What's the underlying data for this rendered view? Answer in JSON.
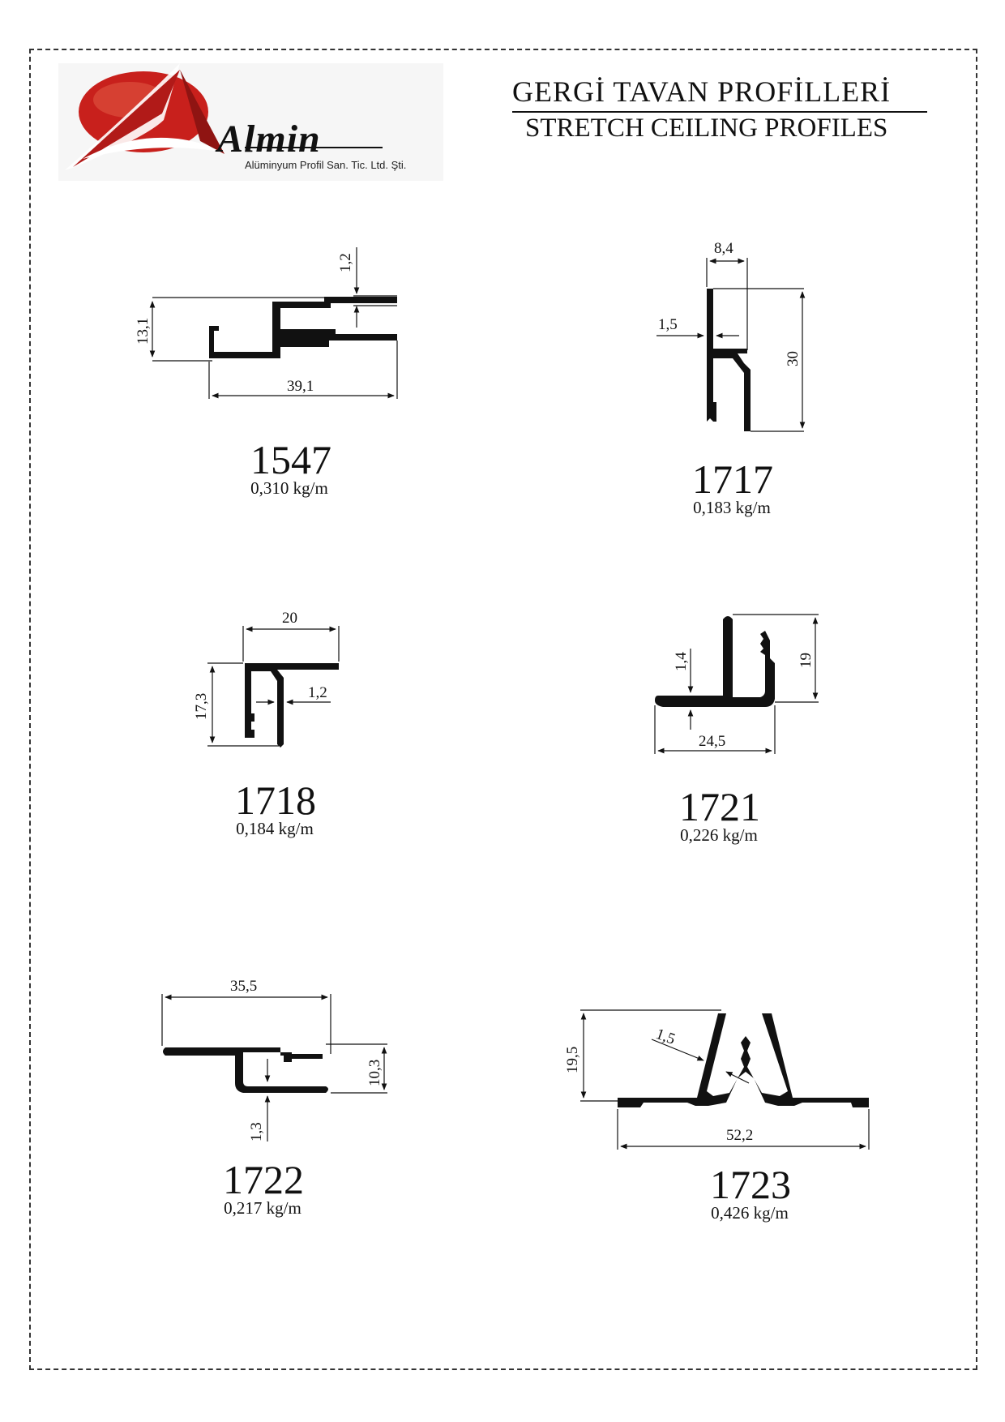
{
  "header": {
    "title_tr": "GERGİ TAVAN  PROFİLLERİ",
    "title_en": "STRETCH CEILING PROFILES"
  },
  "logo": {
    "name": "Almin",
    "subtitle": "Alüminyum Profil San. Tic. Ltd. Şti.",
    "colors": {
      "red": "#c8201c",
      "dark": "#1a1a1a"
    }
  },
  "profiles": [
    {
      "code": "1547",
      "weight": "0,310 kg/m",
      "dims": [
        "1,2",
        "13,1",
        "39,1"
      ]
    },
    {
      "code": "1717",
      "weight": "0,183 kg/m",
      "dims": [
        "8,4",
        "1,5",
        "30"
      ]
    },
    {
      "code": "1718",
      "weight": "0,184 kg/m",
      "dims": [
        "20",
        "17,3",
        "1,2"
      ]
    },
    {
      "code": "1721",
      "weight": "0,226 kg/m",
      "dims": [
        "1,4",
        "19",
        "24,5"
      ]
    },
    {
      "code": "1722",
      "weight": "0,217 kg/m",
      "dims": [
        "35,5",
        "10,3",
        "1,3"
      ]
    },
    {
      "code": "1723",
      "weight": "0,426 kg/m",
      "dims": [
        "19,5",
        "1,5",
        "52,2"
      ]
    }
  ]
}
